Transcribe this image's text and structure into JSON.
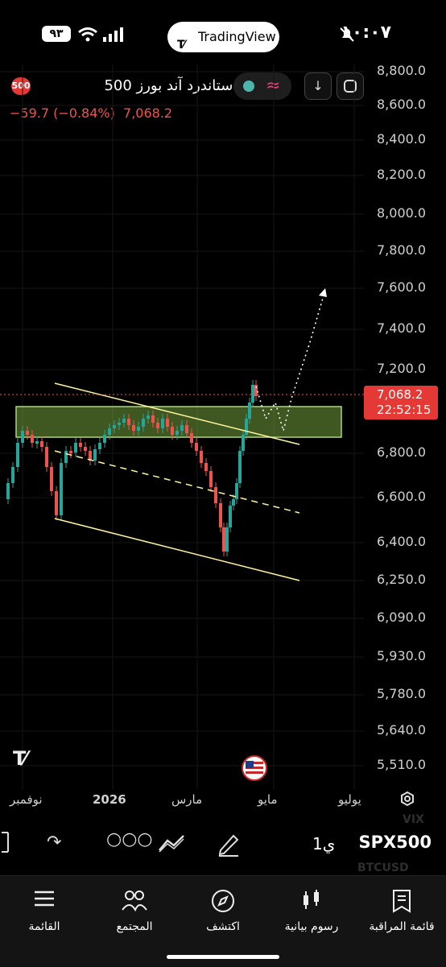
{
  "status_bar": {
    "time": "١٠:٠٧",
    "battery": "٩٣"
  },
  "app": {
    "brand": "TradingView"
  },
  "header": {
    "symbol_title": "مؤشر ستاندرد آند بورز 500",
    "badge": "500",
    "price_change": "−59.7 (−0.84%)",
    "last_price": "7,068.2"
  },
  "y_axis": {
    "labels": [
      "8,800.0",
      "8,600.0",
      "8,400.0",
      "8,200.0",
      "8,000.0",
      "7,800.0",
      "7,600.0",
      "7,400.0",
      "7,200.0",
      "6,800.0",
      "6,600.0",
      "6,400.0",
      "6,250.0",
      "6,090.0",
      "5,930.0",
      "5,780.0",
      "5,640.0",
      "5,510.0"
    ],
    "current_price": "7,068.2",
    "countdown": "22:52:15"
  },
  "x_axis": {
    "labels": [
      "نوفمبر",
      "2026",
      "مارس",
      "مايو",
      "يوليو"
    ]
  },
  "chart_data": {
    "type": "candlestick",
    "last": 7068.2,
    "ylim": [
      5450,
      8850
    ],
    "zone": [
      6900,
      7020
    ]
  },
  "toolbar": {
    "symbol": "SPX500",
    "interval": "1ي",
    "ghost1": "VIX",
    "ghost2": "BTCUSD"
  },
  "bottom_nav": {
    "items": [
      {
        "label": "قائمة المراقبة",
        "icon": "watchlist-icon"
      },
      {
        "label": "رسوم بيانية",
        "icon": "charts-icon"
      },
      {
        "label": "اكتشف",
        "icon": "compass-icon"
      },
      {
        "label": "المجتمع",
        "icon": "community-icon"
      },
      {
        "label": "القائمة",
        "icon": "menu-icon"
      }
    ]
  },
  "colors": {
    "up": "#26a69a",
    "down": "#ef5350",
    "trend": "#fff59d",
    "zone": "#4caf50"
  }
}
